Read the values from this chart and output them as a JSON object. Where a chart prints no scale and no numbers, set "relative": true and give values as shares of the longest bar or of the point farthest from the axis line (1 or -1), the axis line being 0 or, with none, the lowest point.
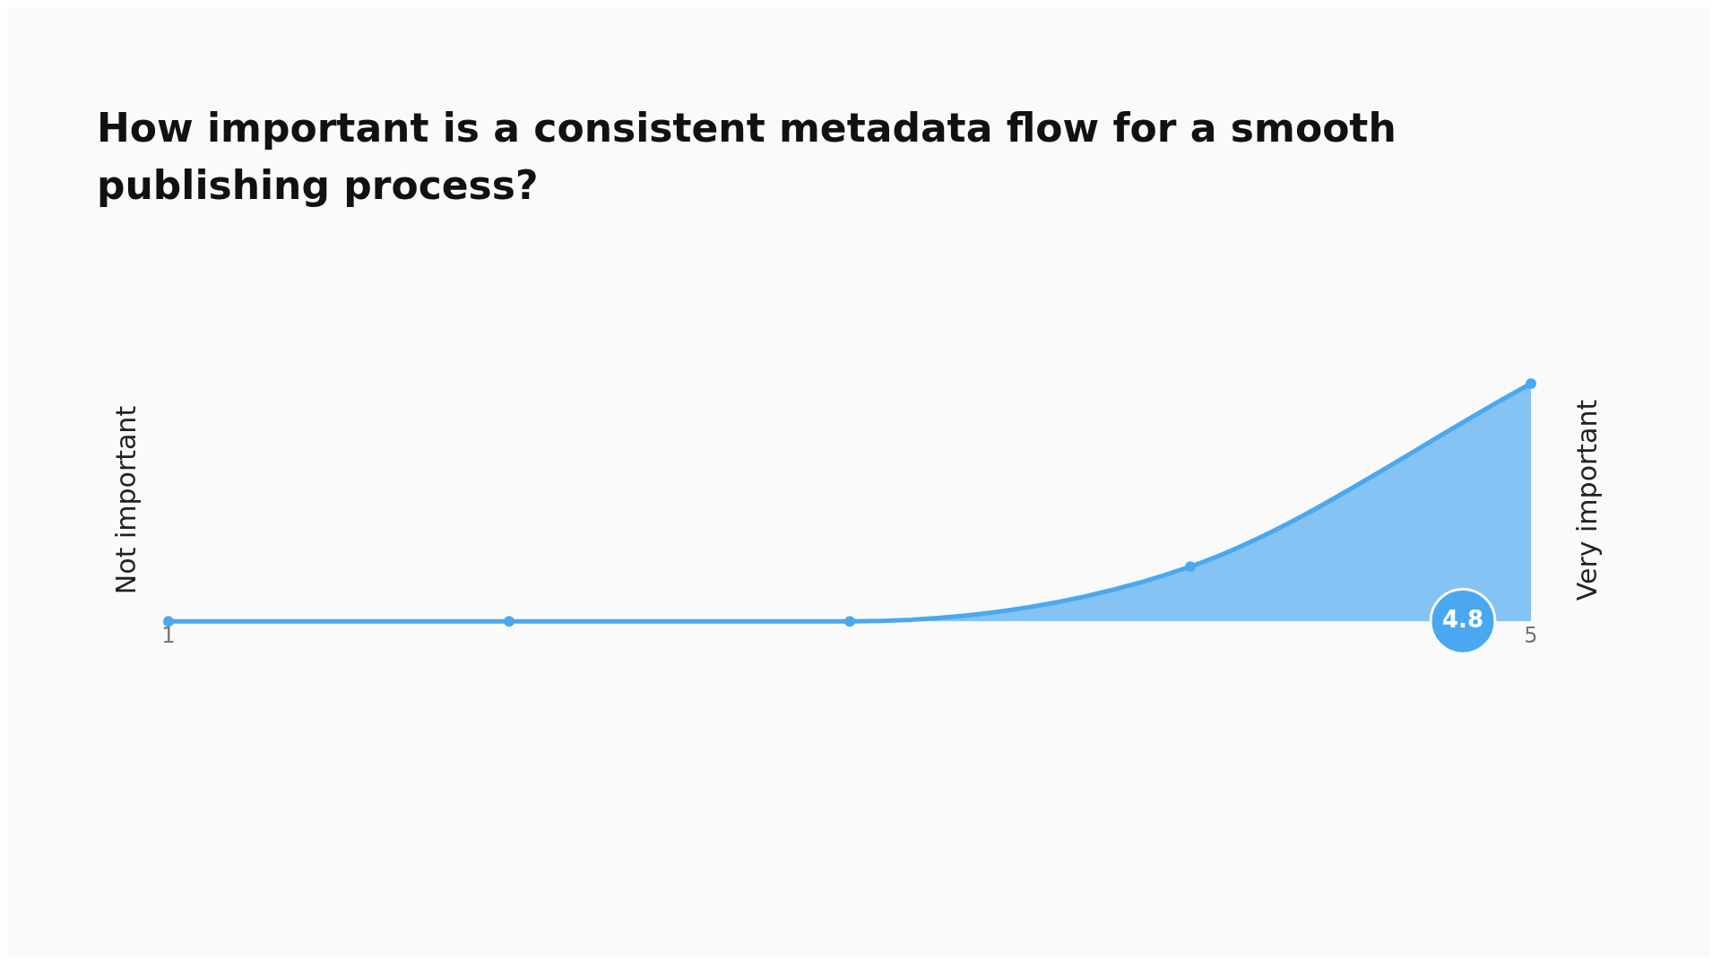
{
  "chart_data": {
    "type": "area",
    "title": "How important is a consistent metadata flow for a smooth publishing process?",
    "ylabel": "Not important",
    "y2label": "Very important",
    "x": [
      1,
      2,
      3,
      4,
      5
    ],
    "series": [
      {
        "color": "#4aa8f0",
        "values": [
          0,
          0,
          0,
          0.23,
          1
        ]
      }
    ],
    "relative": true,
    "xlim": [
      1,
      5
    ],
    "xticks": [
      1,
      5
    ],
    "marker": "circle",
    "grid": false,
    "legend": false,
    "annotations": [
      {
        "text": "4.8",
        "x": 4.8,
        "y": 0
      }
    ]
  }
}
